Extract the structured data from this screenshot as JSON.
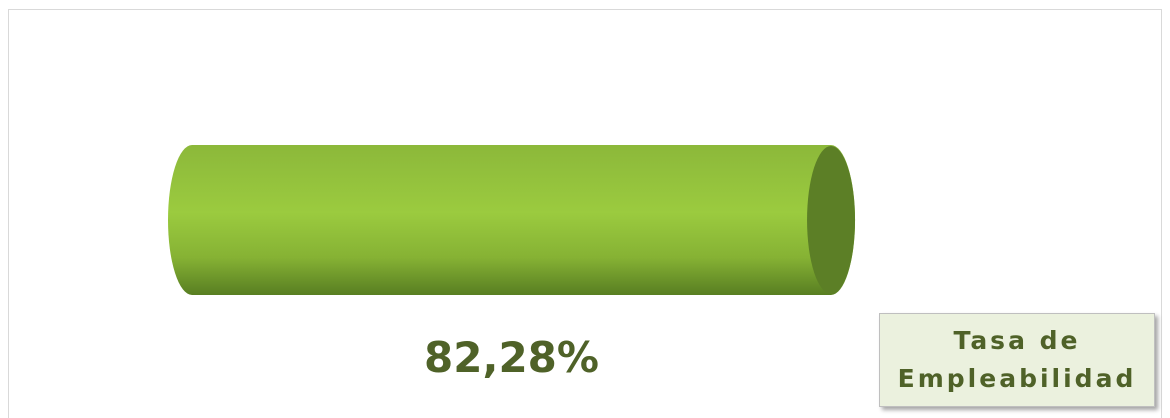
{
  "chart_data": {
    "type": "bar",
    "orientation": "horizontal",
    "series": [
      {
        "name": "Tasa de Empleabilidad",
        "color": "#9bcb3f",
        "values": [
          82.28
        ],
        "value_labels": [
          "82,28%"
        ]
      }
    ],
    "xlim": [
      0,
      100
    ]
  }
}
